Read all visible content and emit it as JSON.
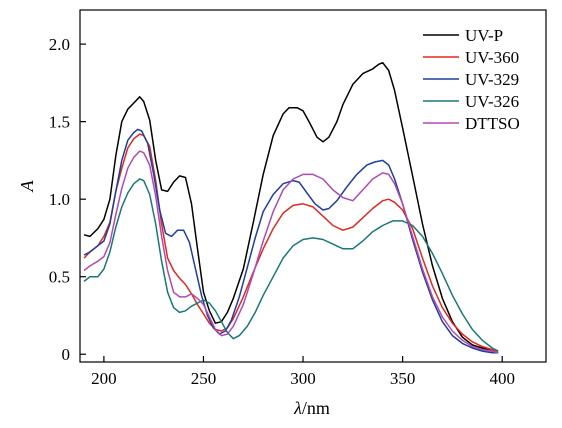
{
  "chart_data": {
    "type": "line",
    "xlabel_symbol": "λ",
    "xlabel_unit": "/nm",
    "ylabel": "A",
    "xlim": [
      188,
      422
    ],
    "ylim": [
      -0.05,
      2.22
    ],
    "xticks": [
      200,
      250,
      300,
      350,
      400
    ],
    "yticks": [
      0,
      0.5,
      1.0,
      1.5,
      2.0
    ],
    "xtick_labels": [
      "200",
      "250",
      "300",
      "350",
      "400"
    ],
    "ytick_labels": [
      "0",
      "0.5",
      "1.0",
      "1.5",
      "2.0"
    ],
    "grid": false,
    "legend_position": "top-right",
    "series": [
      {
        "name": "UV-P",
        "color": "#000000",
        "points": [
          [
            190,
            0.77
          ],
          [
            193,
            0.76
          ],
          [
            197,
            0.81
          ],
          [
            200,
            0.87
          ],
          [
            203,
            1.0
          ],
          [
            206,
            1.28
          ],
          [
            209,
            1.5
          ],
          [
            212,
            1.58
          ],
          [
            215,
            1.62
          ],
          [
            218,
            1.66
          ],
          [
            220,
            1.63
          ],
          [
            223,
            1.51
          ],
          [
            226,
            1.25
          ],
          [
            229,
            1.06
          ],
          [
            232,
            1.05
          ],
          [
            235,
            1.11
          ],
          [
            238,
            1.15
          ],
          [
            241,
            1.14
          ],
          [
            244,
            0.97
          ],
          [
            247,
            0.68
          ],
          [
            250,
            0.4
          ],
          [
            253,
            0.28
          ],
          [
            256,
            0.2
          ],
          [
            259,
            0.21
          ],
          [
            262,
            0.27
          ],
          [
            265,
            0.36
          ],
          [
            270,
            0.55
          ],
          [
            275,
            0.85
          ],
          [
            280,
            1.16
          ],
          [
            285,
            1.41
          ],
          [
            290,
            1.55
          ],
          [
            293,
            1.59
          ],
          [
            297,
            1.59
          ],
          [
            300,
            1.57
          ],
          [
            303,
            1.5
          ],
          [
            307,
            1.4
          ],
          [
            310,
            1.37
          ],
          [
            313,
            1.4
          ],
          [
            317,
            1.5
          ],
          [
            320,
            1.61
          ],
          [
            325,
            1.74
          ],
          [
            330,
            1.81
          ],
          [
            335,
            1.84
          ],
          [
            338,
            1.87
          ],
          [
            340,
            1.88
          ],
          [
            343,
            1.83
          ],
          [
            346,
            1.7
          ],
          [
            350,
            1.46
          ],
          [
            355,
            1.15
          ],
          [
            360,
            0.84
          ],
          [
            365,
            0.57
          ],
          [
            370,
            0.36
          ],
          [
            375,
            0.21
          ],
          [
            380,
            0.11
          ],
          [
            385,
            0.06
          ],
          [
            390,
            0.04
          ],
          [
            395,
            0.02
          ],
          [
            398,
            0.01
          ]
        ]
      },
      {
        "name": "UV-360",
        "color": "#e02a1f",
        "points": [
          [
            190,
            0.62
          ],
          [
            193,
            0.66
          ],
          [
            197,
            0.7
          ],
          [
            200,
            0.76
          ],
          [
            203,
            0.85
          ],
          [
            206,
            1.05
          ],
          [
            209,
            1.2
          ],
          [
            212,
            1.33
          ],
          [
            215,
            1.39
          ],
          [
            218,
            1.42
          ],
          [
            220,
            1.41
          ],
          [
            223,
            1.34
          ],
          [
            226,
            1.12
          ],
          [
            229,
            0.84
          ],
          [
            232,
            0.62
          ],
          [
            235,
            0.54
          ],
          [
            238,
            0.49
          ],
          [
            241,
            0.45
          ],
          [
            244,
            0.39
          ],
          [
            247,
            0.32
          ],
          [
            250,
            0.26
          ],
          [
            253,
            0.2
          ],
          [
            256,
            0.16
          ],
          [
            259,
            0.15
          ],
          [
            262,
            0.17
          ],
          [
            265,
            0.23
          ],
          [
            270,
            0.37
          ],
          [
            275,
            0.53
          ],
          [
            280,
            0.68
          ],
          [
            285,
            0.81
          ],
          [
            290,
            0.91
          ],
          [
            295,
            0.96
          ],
          [
            300,
            0.97
          ],
          [
            305,
            0.95
          ],
          [
            310,
            0.89
          ],
          [
            315,
            0.83
          ],
          [
            320,
            0.8
          ],
          [
            325,
            0.82
          ],
          [
            330,
            0.88
          ],
          [
            335,
            0.94
          ],
          [
            340,
            0.99
          ],
          [
            343,
            1.0
          ],
          [
            346,
            0.98
          ],
          [
            350,
            0.93
          ],
          [
            355,
            0.81
          ],
          [
            360,
            0.62
          ],
          [
            365,
            0.44
          ],
          [
            370,
            0.3
          ],
          [
            375,
            0.2
          ],
          [
            380,
            0.13
          ],
          [
            385,
            0.08
          ],
          [
            390,
            0.05
          ],
          [
            395,
            0.03
          ],
          [
            398,
            0.02
          ]
        ]
      },
      {
        "name": "UV-329",
        "color": "#1e3ea0",
        "points": [
          [
            190,
            0.64
          ],
          [
            193,
            0.66
          ],
          [
            197,
            0.7
          ],
          [
            200,
            0.73
          ],
          [
            203,
            0.84
          ],
          [
            206,
            1.05
          ],
          [
            209,
            1.25
          ],
          [
            212,
            1.38
          ],
          [
            215,
            1.43
          ],
          [
            217,
            1.45
          ],
          [
            219,
            1.44
          ],
          [
            222,
            1.36
          ],
          [
            225,
            1.16
          ],
          [
            228,
            0.93
          ],
          [
            231,
            0.78
          ],
          [
            234,
            0.76
          ],
          [
            237,
            0.8
          ],
          [
            240,
            0.8
          ],
          [
            243,
            0.72
          ],
          [
            246,
            0.55
          ],
          [
            249,
            0.38
          ],
          [
            252,
            0.25
          ],
          [
            255,
            0.17
          ],
          [
            258,
            0.13
          ],
          [
            261,
            0.15
          ],
          [
            264,
            0.22
          ],
          [
            268,
            0.37
          ],
          [
            272,
            0.56
          ],
          [
            276,
            0.75
          ],
          [
            280,
            0.92
          ],
          [
            285,
            1.03
          ],
          [
            290,
            1.1
          ],
          [
            295,
            1.12
          ],
          [
            298,
            1.11
          ],
          [
            302,
            1.04
          ],
          [
            306,
            0.97
          ],
          [
            310,
            0.93
          ],
          [
            313,
            0.94
          ],
          [
            317,
            0.99
          ],
          [
            322,
            1.08
          ],
          [
            327,
            1.16
          ],
          [
            332,
            1.22
          ],
          [
            336,
            1.24
          ],
          [
            340,
            1.25
          ],
          [
            343,
            1.22
          ],
          [
            346,
            1.13
          ],
          [
            350,
            0.97
          ],
          [
            355,
            0.74
          ],
          [
            360,
            0.53
          ],
          [
            365,
            0.35
          ],
          [
            370,
            0.21
          ],
          [
            375,
            0.12
          ],
          [
            380,
            0.07
          ],
          [
            385,
            0.04
          ],
          [
            390,
            0.02
          ],
          [
            395,
            0.01
          ],
          [
            398,
            0.01
          ]
        ]
      },
      {
        "name": "UV-326",
        "color": "#1a7878",
        "points": [
          [
            190,
            0.47
          ],
          [
            193,
            0.5
          ],
          [
            197,
            0.5
          ],
          [
            200,
            0.55
          ],
          [
            203,
            0.66
          ],
          [
            206,
            0.82
          ],
          [
            209,
            0.95
          ],
          [
            212,
            1.04
          ],
          [
            215,
            1.1
          ],
          [
            218,
            1.13
          ],
          [
            220,
            1.12
          ],
          [
            223,
            1.03
          ],
          [
            226,
            0.84
          ],
          [
            229,
            0.6
          ],
          [
            232,
            0.4
          ],
          [
            235,
            0.3
          ],
          [
            238,
            0.27
          ],
          [
            241,
            0.28
          ],
          [
            244,
            0.31
          ],
          [
            247,
            0.33
          ],
          [
            250,
            0.35
          ],
          [
            253,
            0.33
          ],
          [
            256,
            0.28
          ],
          [
            259,
            0.21
          ],
          [
            262,
            0.14
          ],
          [
            265,
            0.1
          ],
          [
            268,
            0.12
          ],
          [
            272,
            0.18
          ],
          [
            276,
            0.27
          ],
          [
            280,
            0.38
          ],
          [
            285,
            0.5
          ],
          [
            290,
            0.62
          ],
          [
            295,
            0.7
          ],
          [
            300,
            0.74
          ],
          [
            305,
            0.75
          ],
          [
            310,
            0.74
          ],
          [
            315,
            0.71
          ],
          [
            320,
            0.68
          ],
          [
            325,
            0.68
          ],
          [
            330,
            0.73
          ],
          [
            335,
            0.79
          ],
          [
            340,
            0.83
          ],
          [
            345,
            0.86
          ],
          [
            350,
            0.86
          ],
          [
            355,
            0.83
          ],
          [
            360,
            0.76
          ],
          [
            365,
            0.65
          ],
          [
            370,
            0.52
          ],
          [
            375,
            0.38
          ],
          [
            380,
            0.26
          ],
          [
            385,
            0.16
          ],
          [
            390,
            0.09
          ],
          [
            395,
            0.04
          ],
          [
            398,
            0.02
          ]
        ]
      },
      {
        "name": "DTTSO",
        "color": "#b04ab4",
        "points": [
          [
            190,
            0.54
          ],
          [
            193,
            0.57
          ],
          [
            197,
            0.6
          ],
          [
            200,
            0.63
          ],
          [
            203,
            0.72
          ],
          [
            206,
            0.9
          ],
          [
            209,
            1.07
          ],
          [
            212,
            1.2
          ],
          [
            215,
            1.27
          ],
          [
            218,
            1.31
          ],
          [
            220,
            1.3
          ],
          [
            223,
            1.22
          ],
          [
            226,
            1.02
          ],
          [
            229,
            0.76
          ],
          [
            232,
            0.54
          ],
          [
            235,
            0.4
          ],
          [
            238,
            0.37
          ],
          [
            241,
            0.37
          ],
          [
            244,
            0.39
          ],
          [
            247,
            0.36
          ],
          [
            250,
            0.32
          ],
          [
            253,
            0.24
          ],
          [
            256,
            0.16
          ],
          [
            259,
            0.12
          ],
          [
            262,
            0.13
          ],
          [
            265,
            0.18
          ],
          [
            270,
            0.32
          ],
          [
            275,
            0.52
          ],
          [
            280,
            0.73
          ],
          [
            285,
            0.92
          ],
          [
            290,
            1.06
          ],
          [
            295,
            1.13
          ],
          [
            300,
            1.16
          ],
          [
            305,
            1.16
          ],
          [
            310,
            1.13
          ],
          [
            315,
            1.06
          ],
          [
            320,
            1.01
          ],
          [
            325,
            0.99
          ],
          [
            330,
            1.06
          ],
          [
            335,
            1.13
          ],
          [
            340,
            1.17
          ],
          [
            343,
            1.16
          ],
          [
            346,
            1.1
          ],
          [
            350,
            0.97
          ],
          [
            355,
            0.76
          ],
          [
            360,
            0.55
          ],
          [
            365,
            0.37
          ],
          [
            370,
            0.24
          ],
          [
            375,
            0.15
          ],
          [
            380,
            0.09
          ],
          [
            385,
            0.05
          ],
          [
            390,
            0.03
          ],
          [
            395,
            0.02
          ],
          [
            398,
            0.01
          ]
        ]
      }
    ]
  }
}
